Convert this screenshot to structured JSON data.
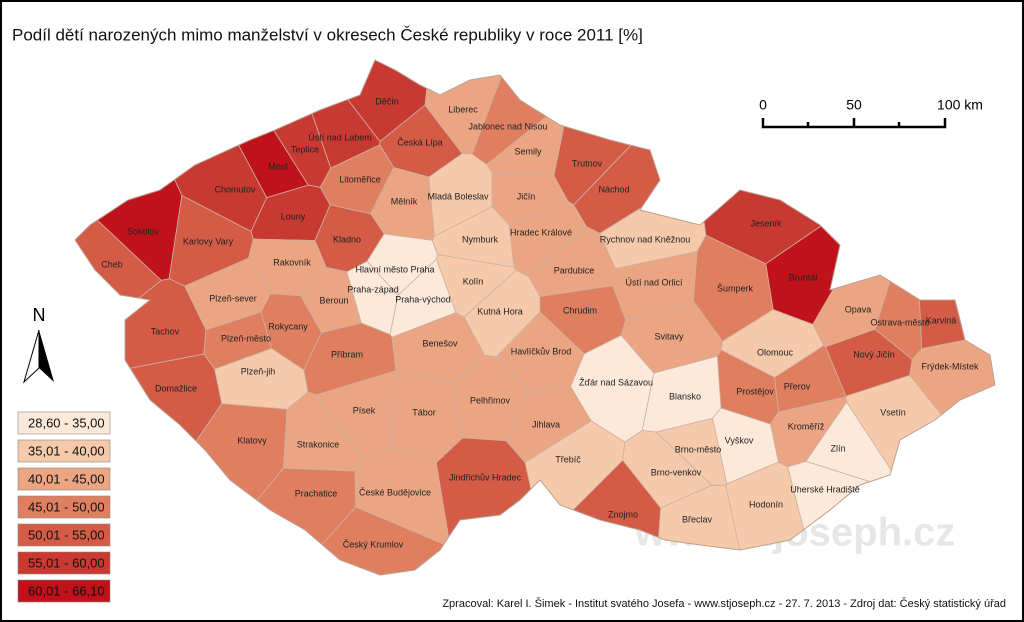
{
  "title": "Podíl dětí narozených mimo manželství v okresech České republiky v roce 2011 [%]",
  "legend": [
    {
      "label": "28,60 - 35,00",
      "color": "#fde9da"
    },
    {
      "label": "35,01 - 40,00",
      "color": "#f5c9aa"
    },
    {
      "label": "40,01 - 45,00",
      "color": "#eca582"
    },
    {
      "label": "45,01 - 50,00",
      "color": "#e07f60"
    },
    {
      "label": "50,01 - 55,00",
      "color": "#d45c47"
    },
    {
      "label": "55,01 - 60,00",
      "color": "#c83a31"
    },
    {
      "label": "60,01 - 66,10",
      "color": "#bf121a"
    }
  ],
  "districts": [
    {
      "name": "Cheb",
      "color": "#d45c47"
    },
    {
      "name": "Sokolov",
      "color": "#bf121a"
    },
    {
      "name": "Karlovy Vary",
      "color": "#d45c47"
    },
    {
      "name": "Chomutov",
      "color": "#c83a31"
    },
    {
      "name": "Most",
      "color": "#bf121a"
    },
    {
      "name": "Teplice",
      "color": "#c83a31"
    },
    {
      "name": "Ústí nad Labem",
      "color": "#c83a31"
    },
    {
      "name": "Děčín",
      "color": "#c83a31"
    },
    {
      "name": "Česká Lípa",
      "color": "#d45c47"
    },
    {
      "name": "Liberec",
      "color": "#eca582"
    },
    {
      "name": "Jablonec nad Nisou",
      "color": "#e07f60"
    },
    {
      "name": "Semily",
      "color": "#eca582"
    },
    {
      "name": "Trutnov",
      "color": "#d45c47"
    },
    {
      "name": "Náchod",
      "color": "#d45c47"
    },
    {
      "name": "Litoměřice",
      "color": "#e07f60"
    },
    {
      "name": "Louny",
      "color": "#c83a31"
    },
    {
      "name": "Mělník",
      "color": "#eca582"
    },
    {
      "name": "Mladá Boleslav",
      "color": "#f5c9aa"
    },
    {
      "name": "Jičín",
      "color": "#eca582"
    },
    {
      "name": "Kladno",
      "color": "#d45c47"
    },
    {
      "name": "Rakovník",
      "color": "#eca582"
    },
    {
      "name": "Hlavní město Praha",
      "color": "#fde9da"
    },
    {
      "name": "Praha-západ",
      "color": "#fde9da"
    },
    {
      "name": "Praha-východ",
      "color": "#fde9da"
    },
    {
      "name": "Beroun",
      "color": "#eca582"
    },
    {
      "name": "Nymburk",
      "color": "#f5c9aa"
    },
    {
      "name": "Hradec Králové",
      "color": "#eca582"
    },
    {
      "name": "Rychnov nad Kněžnou",
      "color": "#f5c9aa"
    },
    {
      "name": "Kolín",
      "color": "#f5c9aa"
    },
    {
      "name": "Pardubice",
      "color": "#eca582"
    },
    {
      "name": "Ústí nad Orlicí",
      "color": "#eca582"
    },
    {
      "name": "Kutná Hora",
      "color": "#f5c9aa"
    },
    {
      "name": "Chrudim",
      "color": "#e07f60"
    },
    {
      "name": "Svitavy",
      "color": "#eca582"
    },
    {
      "name": "Šumperk",
      "color": "#e07f60"
    },
    {
      "name": "Jeseník",
      "color": "#c83a31"
    },
    {
      "name": "Bruntál",
      "color": "#bf121a"
    },
    {
      "name": "Opava",
      "color": "#eca582"
    },
    {
      "name": "Ostrava-město",
      "color": "#e07f60"
    },
    {
      "name": "Karviná",
      "color": "#d45c47"
    },
    {
      "name": "Olomouc",
      "color": "#f5c9aa"
    },
    {
      "name": "Nový Jičín",
      "color": "#d45c47"
    },
    {
      "name": "Frýdek-Místek",
      "color": "#eca582"
    },
    {
      "name": "Plzeň-sever",
      "color": "#eca582"
    },
    {
      "name": "Tachov",
      "color": "#d45c47"
    },
    {
      "name": "Rokycany",
      "color": "#e07f60"
    },
    {
      "name": "Plzeň-město",
      "color": "#e07f60"
    },
    {
      "name": "Příbram",
      "color": "#e07f60"
    },
    {
      "name": "Benešov",
      "color": "#eca582"
    },
    {
      "name": "Havlíčkův Brod",
      "color": "#eca582"
    },
    {
      "name": "Domažlice",
      "color": "#d45c47"
    },
    {
      "name": "Plzeň-jih",
      "color": "#f5c9aa"
    },
    {
      "name": "Prostějov",
      "color": "#e07f60"
    },
    {
      "name": "Přerov",
      "color": "#e07f60"
    },
    {
      "name": "Žďár nad Sázavou",
      "color": "#fde9da"
    },
    {
      "name": "Blansko",
      "color": "#fde9da"
    },
    {
      "name": "Písek",
      "color": "#eca582"
    },
    {
      "name": "Tábor",
      "color": "#eca582"
    },
    {
      "name": "Pelhřimov",
      "color": "#eca582"
    },
    {
      "name": "Jihlava",
      "color": "#eca582"
    },
    {
      "name": "Vsetín",
      "color": "#f5c9aa"
    },
    {
      "name": "Klatovy",
      "color": "#e07f60"
    },
    {
      "name": "Strakonice",
      "color": "#eca582"
    },
    {
      "name": "Kroměříž",
      "color": "#eca582"
    },
    {
      "name": "Zlín",
      "color": "#fde9da"
    },
    {
      "name": "Brno-město",
      "color": "#f5c9aa"
    },
    {
      "name": "Vyškov",
      "color": "#fde9da"
    },
    {
      "name": "Třebíč",
      "color": "#f5c9aa"
    },
    {
      "name": "Brno-venkov",
      "color": "#f5c9aa"
    },
    {
      "name": "Jindřichův Hradec",
      "color": "#d45c47"
    },
    {
      "name": "Prachatice",
      "color": "#e07f60"
    },
    {
      "name": "České Budějovice",
      "color": "#eca582"
    },
    {
      "name": "Uherské Hradiště",
      "color": "#fde9da"
    },
    {
      "name": "Hodonín",
      "color": "#f5c9aa"
    },
    {
      "name": "Znojmo",
      "color": "#d45c47"
    },
    {
      "name": "Břeclav",
      "color": "#f5c9aa"
    },
    {
      "name": "Český Krumlov",
      "color": "#e07f60"
    }
  ],
  "scale_bar": {
    "labels": [
      "0",
      "50",
      "100 km"
    ]
  },
  "north": "N",
  "watermark": "www.stjoseph.cz",
  "footer": "Zpracoval: Karel I. Šimek - Institut svatého Josefa - www.stjoseph.cz - 27. 7. 2013 - Zdroj dat: Český statistický úřad"
}
